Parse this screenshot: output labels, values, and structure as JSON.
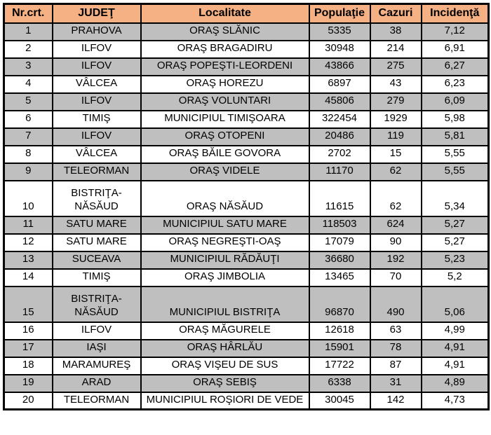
{
  "colors": {
    "header_bg": "#F5B183",
    "alt_row_bg": "#BFBFBF",
    "row_bg": "#FFFFFF",
    "border": "#000000",
    "text": "#000000"
  },
  "table": {
    "columns": [
      {
        "id": "nr",
        "label": "Nr.crt."
      },
      {
        "id": "judet",
        "label": "JUDEŢ"
      },
      {
        "id": "localitate",
        "label": "Localitate"
      },
      {
        "id": "populatie",
        "label": "Populaţie"
      },
      {
        "id": "cazuri",
        "label": "Cazuri"
      },
      {
        "id": "incidenta",
        "label": "Incidenţă"
      }
    ],
    "rows": [
      {
        "nr": "1",
        "judet": "PRAHOVA",
        "localitate": "ORAŞ SLĂNIC",
        "populatie": "5335",
        "cazuri": "38",
        "incidenta": "7,12"
      },
      {
        "nr": "2",
        "judet": "ILFOV",
        "localitate": "ORAŞ BRAGADIRU",
        "populatie": "30948",
        "cazuri": "214",
        "incidenta": "6,91"
      },
      {
        "nr": "3",
        "judet": "ILFOV",
        "localitate": "ORAŞ POPEŞTI-LEORDENI",
        "populatie": "43866",
        "cazuri": "275",
        "incidenta": "6,27"
      },
      {
        "nr": "4",
        "judet": "VÂLCEA",
        "localitate": "ORAŞ HOREZU",
        "populatie": "6897",
        "cazuri": "43",
        "incidenta": "6,23"
      },
      {
        "nr": "5",
        "judet": "ILFOV",
        "localitate": "ORAŞ VOLUNTARI",
        "populatie": "45806",
        "cazuri": "279",
        "incidenta": "6,09"
      },
      {
        "nr": "6",
        "judet": "TIMIŞ",
        "localitate": "MUNICIPIUL TIMIŞOARA",
        "populatie": "322454",
        "cazuri": "1929",
        "incidenta": "5,98"
      },
      {
        "nr": "7",
        "judet": "ILFOV",
        "localitate": "ORAŞ OTOPENI",
        "populatie": "20486",
        "cazuri": "119",
        "incidenta": "5,81"
      },
      {
        "nr": "8",
        "judet": "VÂLCEA",
        "localitate": "ORAŞ BĂILE GOVORA",
        "populatie": "2702",
        "cazuri": "15",
        "incidenta": "5,55"
      },
      {
        "nr": "9",
        "judet": "TELEORMAN",
        "localitate": "ORAŞ VIDELE",
        "populatie": "11170",
        "cazuri": "62",
        "incidenta": "5,55"
      },
      {
        "nr": "10",
        "judet": "BISTRIŢA-NĂSĂUD",
        "localitate": "ORAŞ NĂSĂUD",
        "populatie": "11615",
        "cazuri": "62",
        "incidenta": "5,34",
        "tall": true
      },
      {
        "nr": "11",
        "judet": "SATU MARE",
        "localitate": "MUNICIPIUL SATU MARE",
        "populatie": "118503",
        "cazuri": "624",
        "incidenta": "5,27"
      },
      {
        "nr": "12",
        "judet": "SATU MARE",
        "localitate": "ORAŞ NEGREŞTI-OAŞ",
        "populatie": "17079",
        "cazuri": "90",
        "incidenta": "5,27"
      },
      {
        "nr": "13",
        "judet": "SUCEAVA",
        "localitate": "MUNICIPIUL RĂDĂUŢI",
        "populatie": "36680",
        "cazuri": "192",
        "incidenta": "5,23"
      },
      {
        "nr": "14",
        "judet": "TIMIŞ",
        "localitate": "ORAŞ JIMBOLIA",
        "populatie": "13465",
        "cazuri": "70",
        "incidenta": "5,2"
      },
      {
        "nr": "15",
        "judet": "BISTRIŢA-NĂSĂUD",
        "localitate": "MUNICIPIUL BISTRIŢA",
        "populatie": "96870",
        "cazuri": "490",
        "incidenta": "5,06",
        "tall": true
      },
      {
        "nr": "16",
        "judet": "ILFOV",
        "localitate": "ORAŞ MĂGURELE",
        "populatie": "12618",
        "cazuri": "63",
        "incidenta": "4,99"
      },
      {
        "nr": "17",
        "judet": "IAŞI",
        "localitate": "ORAŞ HÂRLĂU",
        "populatie": "15901",
        "cazuri": "78",
        "incidenta": "4,91"
      },
      {
        "nr": "18",
        "judet": "MARAMUREŞ",
        "localitate": "ORAŞ VIŞEU DE SUS",
        "populatie": "17722",
        "cazuri": "87",
        "incidenta": "4,91"
      },
      {
        "nr": "19",
        "judet": "ARAD",
        "localitate": "ORAŞ SEBIŞ",
        "populatie": "6338",
        "cazuri": "31",
        "incidenta": "4,89"
      },
      {
        "nr": "20",
        "judet": "TELEORMAN",
        "localitate": "MUNICIPIUL ROŞIORI DE VEDE",
        "populatie": "30045",
        "cazuri": "142",
        "incidenta": "4,73"
      }
    ]
  }
}
